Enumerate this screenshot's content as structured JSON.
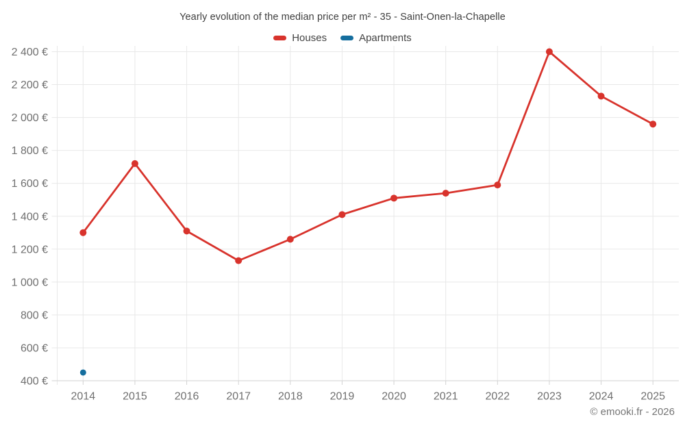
{
  "chart": {
    "title": "Yearly evolution of the median price per m² - 35 - Saint-Onen-la-Chapelle",
    "legend": {
      "houses": "Houses",
      "apartments": "Apartments"
    },
    "footer": "© emooki.fr - 2026"
  },
  "chart_data": {
    "type": "line",
    "title": "Yearly evolution of the median price per m² - 35 - Saint-Onen-la-Chapelle",
    "categories": [
      "2014",
      "2015",
      "2016",
      "2017",
      "2018",
      "2019",
      "2020",
      "2021",
      "2022",
      "2023",
      "2024",
      "2025"
    ],
    "series": [
      {
        "name": "Houses",
        "color": "#d8332c",
        "marker_radius": 5,
        "values": [
          1300,
          1720,
          1310,
          1130,
          1260,
          1410,
          1510,
          1540,
          1590,
          2400,
          2130,
          1960
        ]
      },
      {
        "name": "Apartments",
        "color": "#156e9e",
        "marker_radius": 4.5,
        "values": [
          450,
          null,
          null,
          null,
          null,
          null,
          null,
          null,
          null,
          null,
          null,
          null
        ]
      }
    ],
    "xlabel": "",
    "ylabel": "",
    "ylim": [
      400,
      2400
    ],
    "yticks": [
      400,
      600,
      800,
      1000,
      1200,
      1400,
      1600,
      1800,
      2000,
      2200,
      2400
    ],
    "ytick_suffix": " €",
    "grid": true,
    "legend_position": "top"
  },
  "style": {
    "grid_color": "#e8e8e8",
    "axis_color": "#d2d2d2",
    "tick_color": "#d2d2d2",
    "axis_label_color": "#6f6f6f",
    "background": "#ffffff"
  }
}
